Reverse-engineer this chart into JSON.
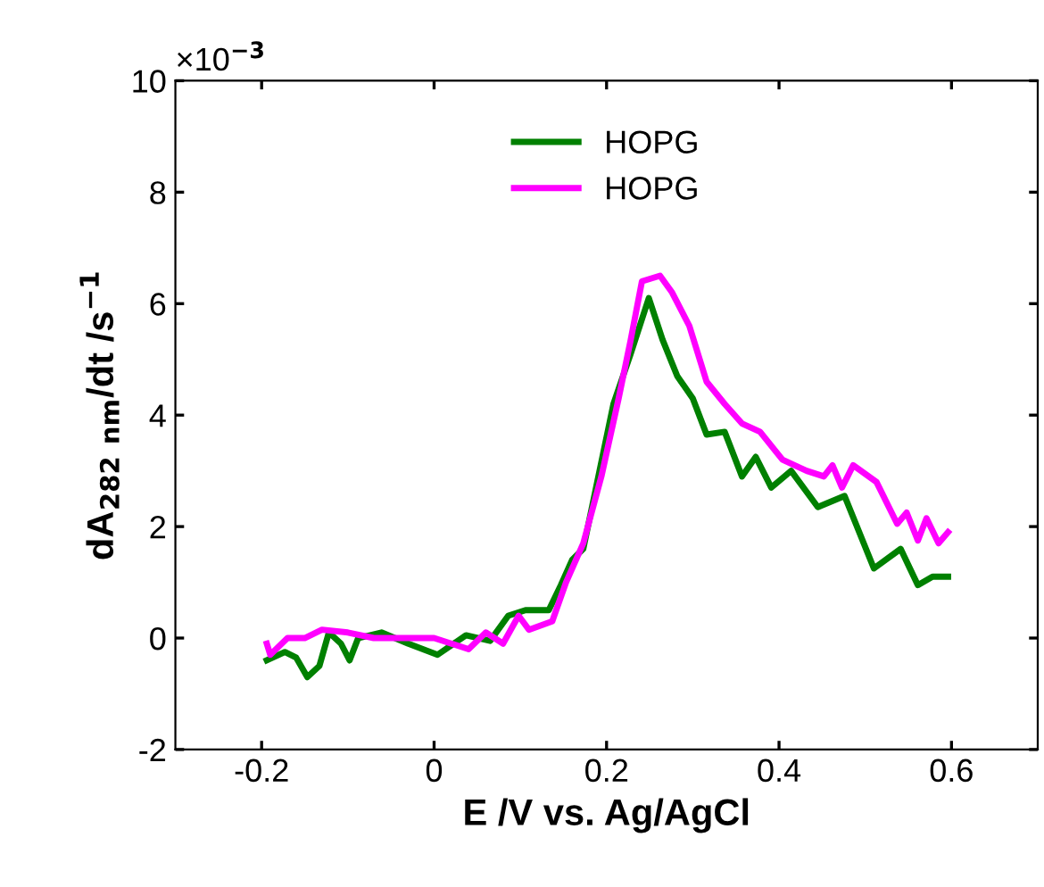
{
  "chart_data": {
    "type": "line",
    "xlabel": "E /V vs. Ag/AgCl",
    "ylabel": "dA$_{282}$ $_{nm}$/dt /s$^{−1}$",
    "annotations": [
      "×10$^{−3}$"
    ],
    "xlim": [
      -0.3,
      0.7
    ],
    "xticks": [
      -0.2,
      0,
      0.2,
      0.4,
      0.6
    ],
    "ylim": [
      -2,
      10
    ],
    "yticks": [
      -2,
      0,
      2,
      4,
      6,
      8,
      10
    ],
    "legend": "top",
    "grid": false,
    "marker": "none",
    "line_style": "solid",
    "series": [
      {
        "name": "HOPG",
        "color": "#008000",
        "x": [
          -0.194,
          -0.173,
          -0.16,
          -0.147,
          -0.133,
          -0.122,
          -0.108,
          -0.098,
          -0.088,
          -0.061,
          -0.03,
          0.004,
          0.037,
          0.065,
          0.086,
          0.106,
          0.133,
          0.147,
          0.16,
          0.173,
          0.208,
          0.228,
          0.249,
          0.265,
          0.282,
          0.3,
          0.316,
          0.337,
          0.357,
          0.373,
          0.391,
          0.414,
          0.445,
          0.476,
          0.51,
          0.541,
          0.561,
          0.578,
          0.596
        ],
        "values": [
          -0.4,
          -0.25,
          -0.35,
          -0.7,
          -0.5,
          0.1,
          -0.1,
          -0.4,
          0.0,
          0.1,
          -0.1,
          -0.3,
          0.05,
          -0.05,
          0.4,
          0.5,
          0.5,
          0.95,
          1.4,
          1.6,
          4.2,
          5.1,
          6.1,
          5.35,
          4.7,
          4.3,
          3.65,
          3.7,
          2.9,
          3.25,
          2.7,
          3.0,
          2.35,
          2.55,
          1.25,
          1.6,
          0.95,
          1.1,
          1.1
        ]
      },
      {
        "name": "HOPG",
        "color": "#ff00ff",
        "x": [
          -0.194,
          -0.19,
          -0.17,
          -0.15,
          -0.13,
          -0.1,
          -0.07,
          -0.04,
          0.0,
          0.02,
          0.04,
          0.06,
          0.08,
          0.098,
          0.11,
          0.137,
          0.153,
          0.173,
          0.194,
          0.214,
          0.228,
          0.241,
          0.262,
          0.276,
          0.296,
          0.316,
          0.337,
          0.357,
          0.378,
          0.404,
          0.432,
          0.452,
          0.462,
          0.473,
          0.486,
          0.513,
          0.537,
          0.548,
          0.561,
          0.571,
          0.585,
          0.596
        ],
        "values": [
          -0.1,
          -0.3,
          0.0,
          0.0,
          0.15,
          0.1,
          0.0,
          0.0,
          0.0,
          -0.1,
          -0.2,
          0.1,
          -0.1,
          0.4,
          0.15,
          0.3,
          1.0,
          1.7,
          2.9,
          4.3,
          5.35,
          6.4,
          6.5,
          6.2,
          5.6,
          4.6,
          4.2,
          3.85,
          3.7,
          3.2,
          3.0,
          2.9,
          3.1,
          2.7,
          3.1,
          2.8,
          2.05,
          2.25,
          1.75,
          2.15,
          1.7,
          1.9
        ]
      }
    ]
  }
}
